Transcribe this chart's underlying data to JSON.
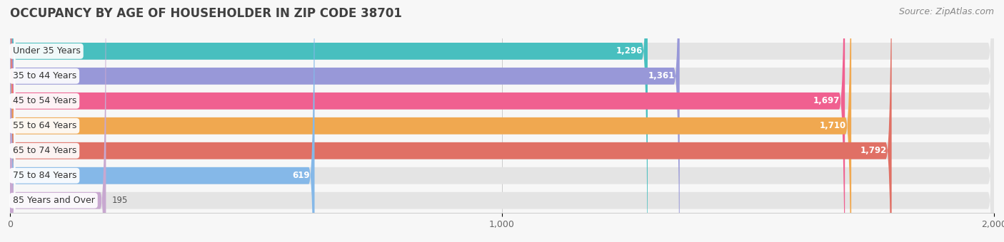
{
  "title": "OCCUPANCY BY AGE OF HOUSEHOLDER IN ZIP CODE 38701",
  "source": "Source: ZipAtlas.com",
  "categories": [
    "Under 35 Years",
    "35 to 44 Years",
    "45 to 54 Years",
    "55 to 64 Years",
    "65 to 74 Years",
    "75 to 84 Years",
    "85 Years and Over"
  ],
  "values": [
    1296,
    1361,
    1697,
    1710,
    1792,
    619,
    195
  ],
  "bar_colors": [
    "#48BFBF",
    "#9898D8",
    "#F06090",
    "#F0A850",
    "#E07065",
    "#85B8E8",
    "#C8A8D0"
  ],
  "xlim": [
    0,
    2000
  ],
  "xticks": [
    0,
    1000,
    2000
  ],
  "background_color": "#f7f7f7",
  "bar_bg_color": "#e4e4e4",
  "title_fontsize": 12,
  "source_fontsize": 9,
  "label_fontsize": 9,
  "value_fontsize": 8.5,
  "value_threshold": 400
}
